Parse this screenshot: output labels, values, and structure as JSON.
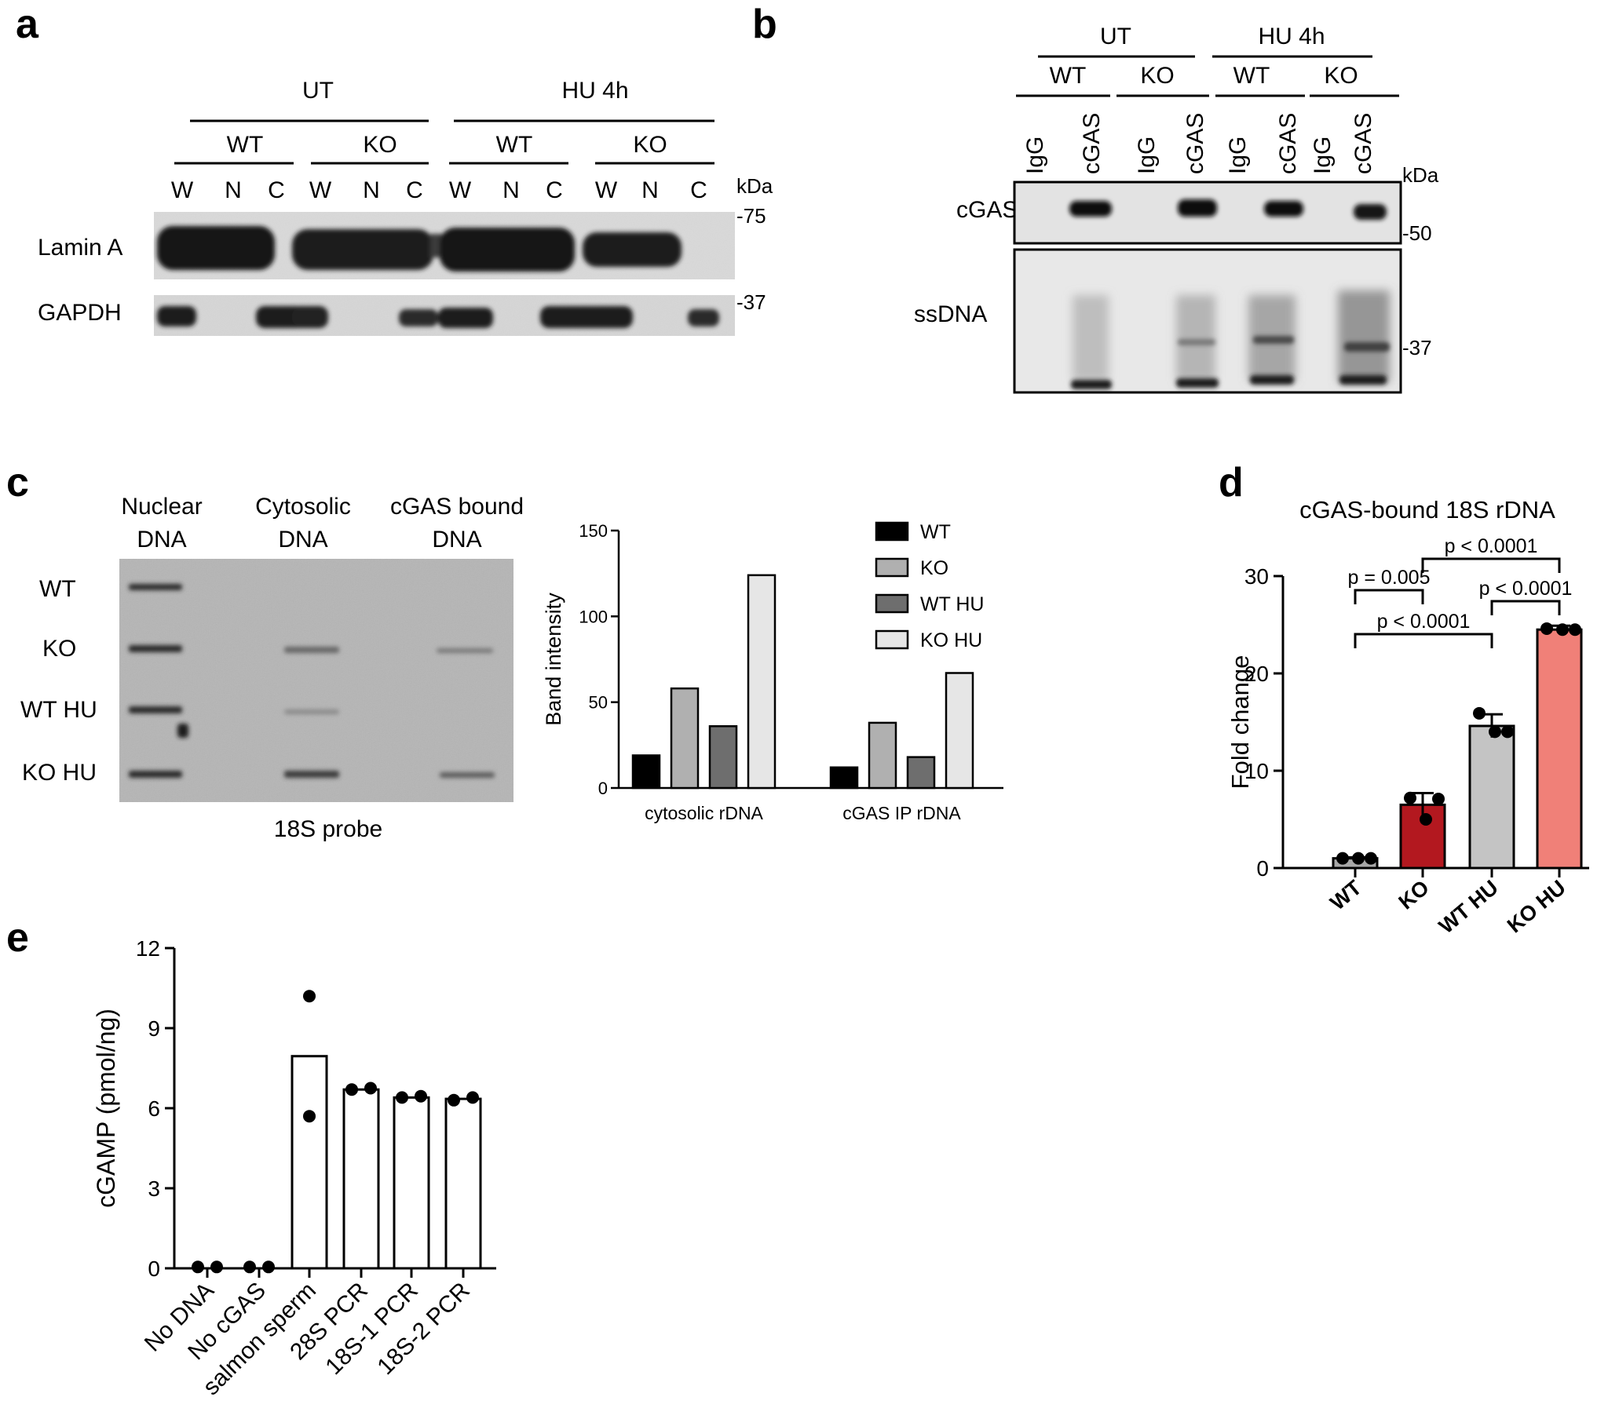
{
  "panels": {
    "a": {
      "letter": "a",
      "conditions": [
        "UT",
        "HU 4h"
      ],
      "genotypes": [
        "WT",
        "KO",
        "WT",
        "KO"
      ],
      "fractions": [
        "W",
        "N",
        "C",
        "W",
        "N",
        "C",
        "W",
        "N",
        "C",
        "W",
        "N",
        "C"
      ],
      "kda_label": "kDa",
      "rows": [
        {
          "label": "Lamin A",
          "marker": "-75"
        },
        {
          "label": "GAPDH",
          "marker": "-37"
        }
      ]
    },
    "b": {
      "letter": "b",
      "conditions": [
        "UT",
        "HU 4h"
      ],
      "genotypes": [
        "WT",
        "KO",
        "WT",
        "KO"
      ],
      "ip_lanes": [
        "IgG",
        "cGAS",
        "IgG",
        "cGAS",
        "IgG",
        "cGAS",
        "IgG",
        "cGAS"
      ],
      "kda_label": "kDa",
      "rows": [
        {
          "label": "cGAS",
          "marker": "-50"
        },
        {
          "label": "ssDNA",
          "marker": "-37"
        }
      ]
    },
    "c": {
      "letter": "c",
      "blot": {
        "columns": [
          [
            "Nuclear",
            "DNA"
          ],
          [
            "Cytosolic",
            "DNA"
          ],
          [
            "cGAS bound",
            "DNA"
          ]
        ],
        "rows": [
          "WT",
          "KO",
          "WT HU",
          "KO HU"
        ],
        "caption": "18S probe"
      }
    },
    "d": {
      "letter": "d"
    },
    "e": {
      "letter": "e"
    }
  },
  "chart_data": [
    {
      "panel": "c",
      "type": "bar",
      "categories": [
        "cytosolic rDNA",
        "cGAS IP rDNA"
      ],
      "series": [
        {
          "name": "WT",
          "values": [
            19,
            12
          ],
          "color": "#000000"
        },
        {
          "name": "KO",
          "values": [
            58,
            38
          ],
          "color": "#b0b0b0"
        },
        {
          "name": "WT HU",
          "values": [
            36,
            18
          ],
          "color": "#6e6e6e"
        },
        {
          "name": "KO HU",
          "values": [
            124,
            67
          ],
          "color": "#e6e6e6"
        }
      ],
      "ylabel": "Band intensity",
      "ylim": [
        0,
        150
      ],
      "yticks": [
        0,
        50,
        100,
        150
      ],
      "legend": "top-right"
    },
    {
      "panel": "d",
      "type": "bar",
      "title": "cGAS-bound 18S rDNA",
      "categories": [
        "WT",
        "KO",
        "WT HU",
        "KO HU"
      ],
      "values": [
        1.0,
        6.5,
        14.6,
        24.5
      ],
      "errors": [
        0.1,
        1.2,
        1.2,
        0.4
      ],
      "points": [
        [
          1.0,
          1.0,
          1.0
        ],
        [
          7.2,
          5.0,
          7.1
        ],
        [
          15.9,
          14.0,
          14.0
        ],
        [
          24.6,
          24.5,
          24.5
        ]
      ],
      "colors": [
        "#a8a8a8",
        "#b3181f",
        "#c4c4c4",
        "#f08078"
      ],
      "ylabel": "Fold change",
      "ylim": [
        0,
        30
      ],
      "yticks": [
        0,
        10,
        20,
        30
      ],
      "annotations": [
        {
          "text": "p = 0.005",
          "from": "WT",
          "to": "KO"
        },
        {
          "text": "p < 0.0001",
          "from": "KO",
          "to": "KO HU"
        },
        {
          "text": "p < 0.0001",
          "from": "WT HU",
          "to": "KO HU"
        },
        {
          "text": "p < 0.0001",
          "from": "WT",
          "to": "WT HU"
        }
      ]
    },
    {
      "panel": "e",
      "type": "bar",
      "categories": [
        "No DNA",
        "No cGAS",
        "salmon sperm",
        "28S PCR",
        "18S-1 PCR",
        "18S-2 PCR"
      ],
      "values": [
        0,
        0,
        7.95,
        6.7,
        6.4,
        6.35
      ],
      "points": [
        [
          0.05,
          0.05
        ],
        [
          0.05,
          0.05
        ],
        [
          10.2,
          5.7
        ],
        [
          6.7,
          6.75
        ],
        [
          6.4,
          6.45
        ],
        [
          6.3,
          6.4
        ]
      ],
      "ylabel": "cGAMP (pmol/ng)",
      "ylim": [
        0,
        12
      ],
      "yticks": [
        0,
        3,
        6,
        9,
        12
      ]
    }
  ]
}
